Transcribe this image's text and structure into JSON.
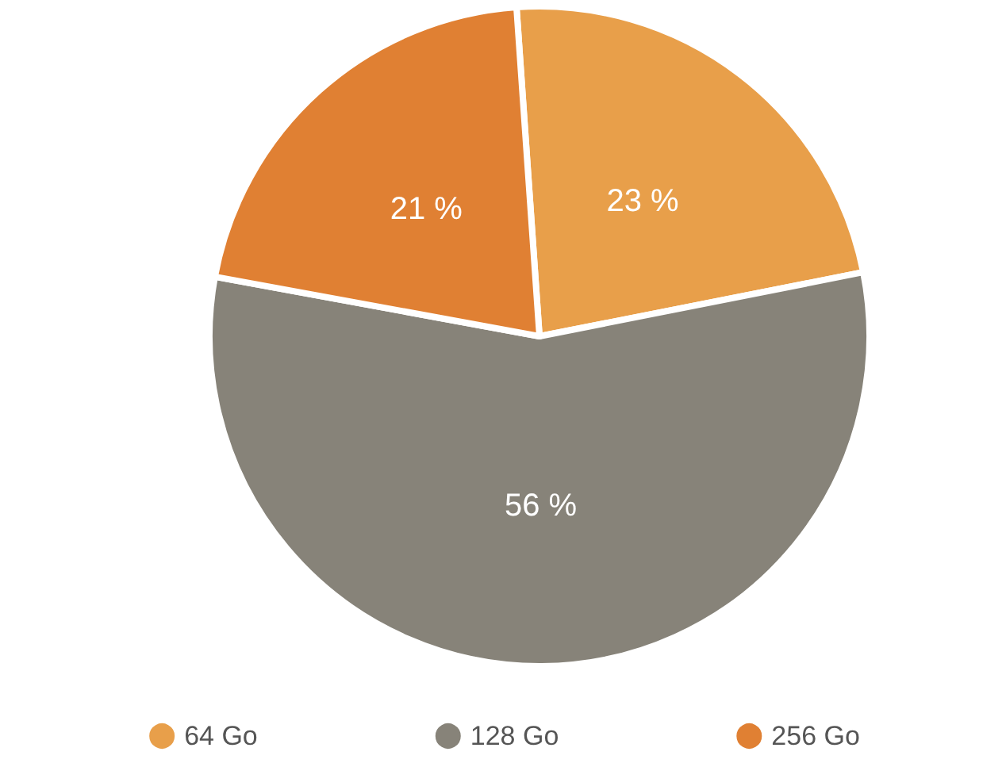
{
  "chart_data": {
    "type": "pie",
    "categories": [
      "64 Go",
      "128 Go",
      "256 Go"
    ],
    "values": [
      23,
      56,
      21
    ],
    "colors": [
      "#e89f4a",
      "#878379",
      "#e08033"
    ],
    "value_labels": [
      "23 %",
      "56 %",
      "21 %"
    ],
    "legend": "bottom"
  }
}
